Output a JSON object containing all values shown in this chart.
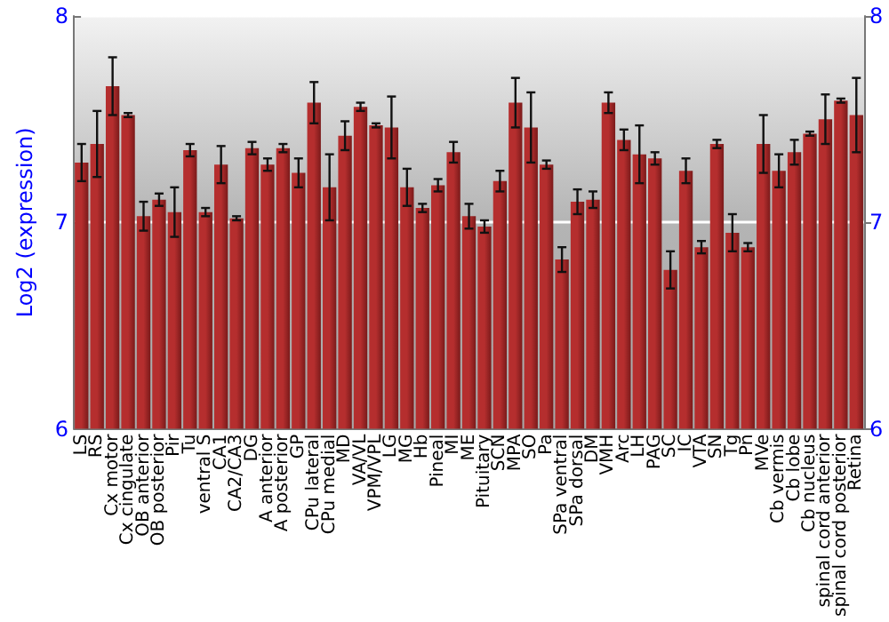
{
  "chart_data": {
    "type": "bar",
    "ylabel": "Log2 (expression)",
    "categories": [
      "LS",
      "RS",
      "Cx motor",
      "Cx cingulate",
      "OB anterior",
      "OB posterior",
      "Pir",
      "Tu",
      "ventral S",
      "CA1",
      "CA2/CA3",
      "DG",
      "A anterior",
      "A posterior",
      "GP",
      "CPu lateral",
      "CPu medial",
      "MD",
      "VA/VL",
      "VPM/VPL",
      "LG",
      "MG",
      "Hb",
      "Pineal",
      "MI",
      "ME",
      "Pituitary",
      "SCN",
      "MPA",
      "SO",
      "Pa",
      "SPa ventral",
      "SPa dorsal",
      "DM",
      "VMH",
      "Arc",
      "LH",
      "PAG",
      "SC",
      "IC",
      "VTA",
      "SN",
      "Tg",
      "Pn",
      "MVe",
      "Cb vermis",
      "Cb lobe",
      "Cb nucleus",
      "spinal cord anterior",
      "spinal cord posterior",
      "Retina"
    ],
    "values": [
      7.29,
      7.38,
      7.66,
      7.52,
      7.03,
      7.11,
      7.05,
      7.35,
      7.05,
      7.28,
      7.02,
      7.36,
      7.28,
      7.36,
      7.24,
      7.58,
      7.17,
      7.42,
      7.56,
      7.47,
      7.46,
      7.17,
      7.07,
      7.18,
      7.34,
      7.03,
      6.98,
      7.2,
      7.58,
      7.46,
      7.28,
      6.82,
      7.1,
      7.11,
      7.58,
      7.4,
      7.33,
      7.31,
      6.77,
      7.25,
      6.88,
      7.38,
      6.95,
      6.88,
      7.38,
      7.25,
      7.34,
      7.43,
      7.5,
      7.59,
      7.52
    ],
    "errors": [
      0.09,
      0.16,
      0.14,
      0.01,
      0.07,
      0.03,
      0.12,
      0.03,
      0.02,
      0.09,
      0.01,
      0.03,
      0.03,
      0.02,
      0.07,
      0.1,
      0.16,
      0.07,
      0.02,
      0.01,
      0.15,
      0.09,
      0.02,
      0.03,
      0.05,
      0.06,
      0.03,
      0.05,
      0.12,
      0.17,
      0.02,
      0.06,
      0.06,
      0.04,
      0.05,
      0.05,
      0.14,
      0.03,
      0.09,
      0.06,
      0.03,
      0.02,
      0.09,
      0.02,
      0.14,
      0.08,
      0.06,
      0.01,
      0.12,
      0.01,
      0.18
    ],
    "color": "#b52e2e",
    "ylim": [
      6,
      8
    ],
    "yticks": [
      6,
      7,
      8
    ],
    "y2lim": [
      6,
      8
    ],
    "y2ticks": [
      6,
      7,
      8
    ],
    "grid": "y"
  }
}
